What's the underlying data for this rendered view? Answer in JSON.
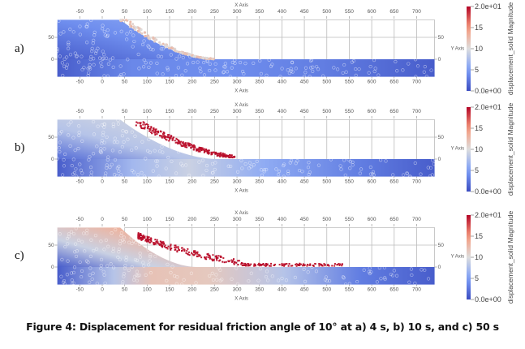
{
  "chart_data": [
    {
      "type": "heatmap",
      "panel_label": "a)",
      "time_s": 4,
      "xlabel": "X Axis",
      "ylabel": "Y Axis",
      "x_ticks": [
        "-50",
        "0",
        "50",
        "100",
        "150",
        "200",
        "250",
        "300",
        "350",
        "400",
        "450",
        "500",
        "550",
        "600",
        "650",
        "700"
      ],
      "y_ticks": [
        "50",
        "0"
      ],
      "xlim": [
        -100,
        740
      ],
      "ylim": [
        -40,
        90
      ],
      "grid": true,
      "colorbar": {
        "title": "displacement_solid Magnitude",
        "min_label": "0.0e+00",
        "max_label": "2.0e+01",
        "ticks": [
          "15",
          "10",
          "5"
        ],
        "range": [
          0,
          20
        ]
      },
      "slope_toe_x": 250,
      "runout_front_x": 250,
      "sliding_mass_max_value": 13,
      "base_value": 3,
      "slope_body_value": 6
    },
    {
      "type": "heatmap",
      "panel_label": "b)",
      "time_s": 10,
      "xlabel": "X Axis",
      "ylabel": "Y Axis",
      "x_ticks": [
        "-50",
        "0",
        "50",
        "100",
        "150",
        "200",
        "250",
        "300",
        "350",
        "400",
        "450",
        "500",
        "550",
        "600",
        "650",
        "700"
      ],
      "y_ticks": [
        "50",
        "0"
      ],
      "xlim": [
        -100,
        740
      ],
      "ylim": [
        -40,
        90
      ],
      "grid": true,
      "colorbar": {
        "title": "displacement_solid Magnitude",
        "min_label": "0.0e+00",
        "max_label": "2.0e+01",
        "ticks": [
          "15",
          "10",
          "5"
        ],
        "range": [
          0,
          20
        ]
      },
      "runout_front_x": 295,
      "sliding_mass_max_value": 20,
      "base_value": 3,
      "slope_body_value": 9
    },
    {
      "type": "heatmap",
      "panel_label": "c)",
      "time_s": 50,
      "xlabel": "X Axis",
      "ylabel": "Y Axis",
      "x_ticks": [
        "-50",
        "0",
        "50",
        "100",
        "150",
        "200",
        "250",
        "300",
        "350",
        "400",
        "450",
        "500",
        "550",
        "600",
        "650",
        "700"
      ],
      "y_ticks": [
        "50",
        "0"
      ],
      "xlim": [
        -100,
        740
      ],
      "ylim": [
        -40,
        90
      ],
      "grid": true,
      "colorbar": {
        "title": "displacement_solid Magnitude",
        "min_label": "0.0e+00",
        "max_label": "2.0e+01",
        "ticks": [
          "15",
          "10",
          "5"
        ],
        "range": [
          0,
          20
        ]
      },
      "runout_front_x": 535,
      "sliding_mass_max_value": 20,
      "base_value": 3,
      "slope_body_value": 12
    }
  ],
  "caption": "Figure 4: Displacement for residual friction angle of 10° at a) 4 s, b) 10 s, and c) 50 s"
}
